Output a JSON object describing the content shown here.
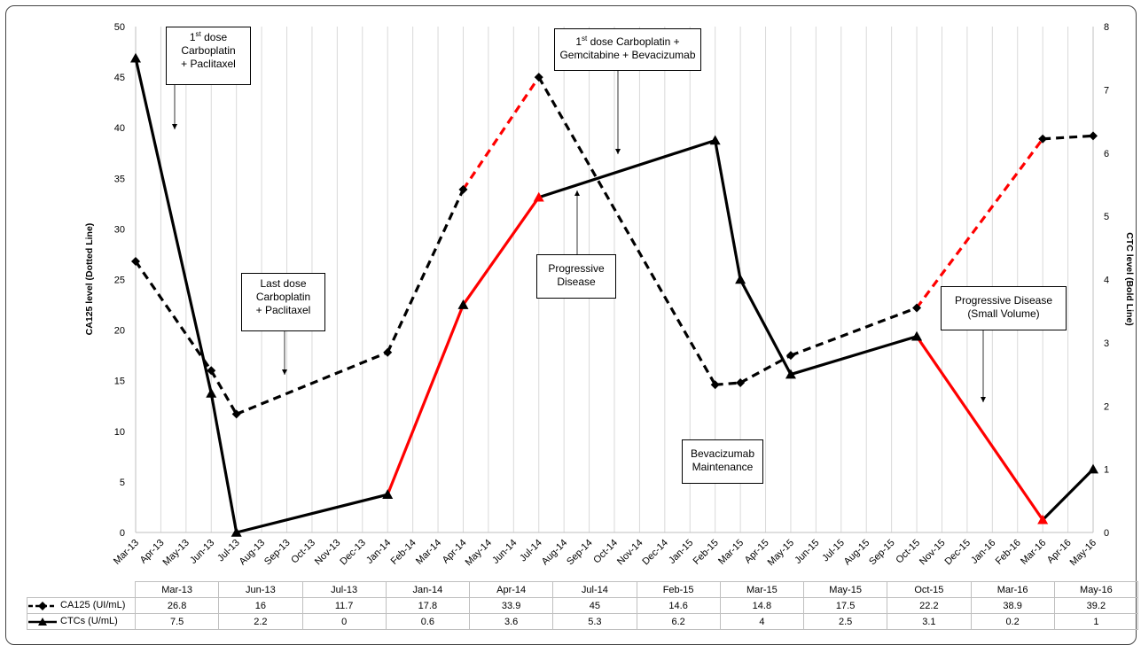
{
  "chart_data": {
    "type": "line",
    "x_axis_ticks": [
      "Mar-13",
      "Apr-13",
      "May-13",
      "Jun-13",
      "Jul-13",
      "Aug-13",
      "Sep-13",
      "Oct-13",
      "Nov-13",
      "Dec-13",
      "Jan-14",
      "Feb-14",
      "Mar-14",
      "Apr-14",
      "May-14",
      "Jun-14",
      "Jul-14",
      "Aug-14",
      "Sep-14",
      "Oct-14",
      "Nov-14",
      "Dec-14",
      "Jan-15",
      "Feb-15",
      "Mar-15",
      "Apr-15",
      "May-15",
      "Jun-15",
      "Jul-15",
      "Aug-15",
      "Sep-15",
      "Oct-15",
      "Nov-15",
      "Dec-15",
      "Jan-16",
      "Feb-16",
      "Mar-16",
      "Apr-16",
      "May-16"
    ],
    "categories": [
      "Mar-13",
      "Jun-13",
      "Jul-13",
      "Jan-14",
      "Apr-14",
      "Jul-14",
      "Feb-15",
      "Mar-15",
      "May-15",
      "Oct-15",
      "Mar-16",
      "May-16"
    ],
    "series": [
      {
        "name": "CA125 (UI/mL)",
        "axis": "left",
        "style": "dashed",
        "marker": "diamond",
        "values": [
          26.8,
          16,
          11.7,
          17.8,
          33.9,
          45,
          14.6,
          14.8,
          17.5,
          22.2,
          38.9,
          39.2
        ],
        "value_labels": [
          "26.8",
          "16",
          "11.7",
          "17.8",
          "33.9",
          "45",
          "14.6",
          "14.8",
          "17.5",
          "22.2",
          "38.9",
          "39.2"
        ]
      },
      {
        "name": "CTCs (U/mL)",
        "axis": "right",
        "style": "solid",
        "marker": "triangle",
        "values": [
          7.5,
          2.2,
          0,
          0.6,
          3.6,
          5.3,
          6.2,
          4,
          2.5,
          3.1,
          0.2,
          1
        ],
        "value_labels": [
          "7.5",
          "2.2",
          "0",
          "0.6",
          "3.6",
          "5.3",
          "6.2",
          "4",
          "2.5",
          "3.1",
          "0.2",
          "1"
        ]
      }
    ],
    "ylabel": "CA125 level (Dotted Line)",
    "y2label": "CTC level (Bold Line)",
    "ylim": [
      0,
      50
    ],
    "y2lim": [
      0,
      8
    ],
    "y_ticks": [
      0,
      5,
      10,
      15,
      20,
      25,
      30,
      35,
      40,
      45,
      50
    ],
    "y2_ticks": [
      0,
      1,
      2,
      3,
      4,
      5,
      6,
      7,
      8
    ],
    "grid": "vertical",
    "colors": {
      "normal": "#000000",
      "progressive": "#ff0000"
    },
    "red_segments": {
      "CA125 (UI/mL)": [
        [
          4,
          5
        ],
        [
          9,
          10
        ]
      ],
      "CTCs (U/mL)": [
        [
          3,
          4
        ],
        [
          4,
          5
        ],
        [
          9,
          10
        ]
      ]
    },
    "annotations": {
      "first_dose_cp": {
        "sup": "st",
        "pre": "1",
        "l1": " dose",
        "l2": "Carboplatin",
        "l3": "+ Paclitaxel"
      },
      "last_dose_cp": {
        "l1": "Last dose",
        "l2": "Carboplatin",
        "l3": "+ Paclitaxel"
      },
      "first_dose_cgb": {
        "pre": "1",
        "sup": "st",
        "l1": " dose Carboplatin +",
        "l2": "Gemcitabine + Bevacizumab"
      },
      "progressive_disease": {
        "l1": "Progressive",
        "l2": "Disease"
      },
      "bevacizumab": {
        "l1": "Bevacizumab",
        "l2": "Maintenance"
      },
      "progressive_small": {
        "l1": "Progressive Disease",
        "l2": "(Small Volume)"
      }
    }
  }
}
